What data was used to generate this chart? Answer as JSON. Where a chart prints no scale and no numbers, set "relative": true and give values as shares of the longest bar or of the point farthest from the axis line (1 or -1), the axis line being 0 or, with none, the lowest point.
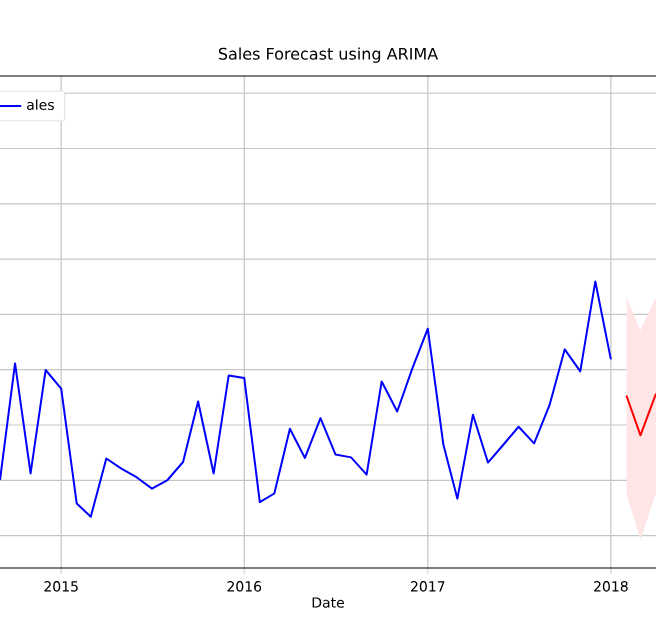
{
  "chart_data": {
    "type": "line",
    "title": "Sales Forecast using ARIMA",
    "xlabel": "Date",
    "relative": true,
    "xlim": [
      "2014-09-01",
      "2018-04-01"
    ],
    "xticks": [
      "2015",
      "2016",
      "2017",
      "2018"
    ],
    "grid": true,
    "legend": "top left",
    "series": [
      {
        "name": "ales",
        "color": "#0000ff",
        "x": [
          "2014-09",
          "2014-10",
          "2014-11",
          "2014-12",
          "2015-01",
          "2015-02",
          "2015-03",
          "2015-04",
          "2015-05",
          "2015-06",
          "2015-07",
          "2015-08",
          "2015-09",
          "2015-10",
          "2015-11",
          "2015-12",
          "2016-01",
          "2016-02",
          "2016-03",
          "2016-04",
          "2016-05",
          "2016-06",
          "2016-07",
          "2016-08",
          "2016-09",
          "2016-10",
          "2016-11",
          "2016-12",
          "2017-01",
          "2017-02",
          "2017-03",
          "2017-04",
          "2017-05",
          "2017-06",
          "2017-07",
          "2017-08",
          "2017-09",
          "2017-10",
          "2017-11",
          "2017-12",
          "2018-01"
        ],
        "values": [
          0.307,
          0.714,
          0.33,
          0.691,
          0.626,
          0.225,
          0.179,
          0.382,
          0.347,
          0.316,
          0.277,
          0.307,
          0.37,
          0.581,
          0.33,
          0.672,
          0.663,
          0.23,
          0.26,
          0.486,
          0.384,
          0.523,
          0.396,
          0.386,
          0.326,
          0.651,
          0.546,
          0.696,
          0.835,
          0.431,
          0.242,
          0.535,
          0.368,
          0.431,
          0.493,
          0.435,
          0.57,
          0.763,
          0.686,
          1.0,
          0.728
        ]
      },
      {
        "color": "#ff0000",
        "x": [
          "2018-02",
          "2018-03",
          "2018-04"
        ],
        "values": [
          0.602,
          0.463,
          0.609
        ],
        "lower": [
          0.26,
          0.098,
          0.26
        ],
        "upper": [
          0.947,
          0.83,
          0.947
        ]
      }
    ]
  }
}
